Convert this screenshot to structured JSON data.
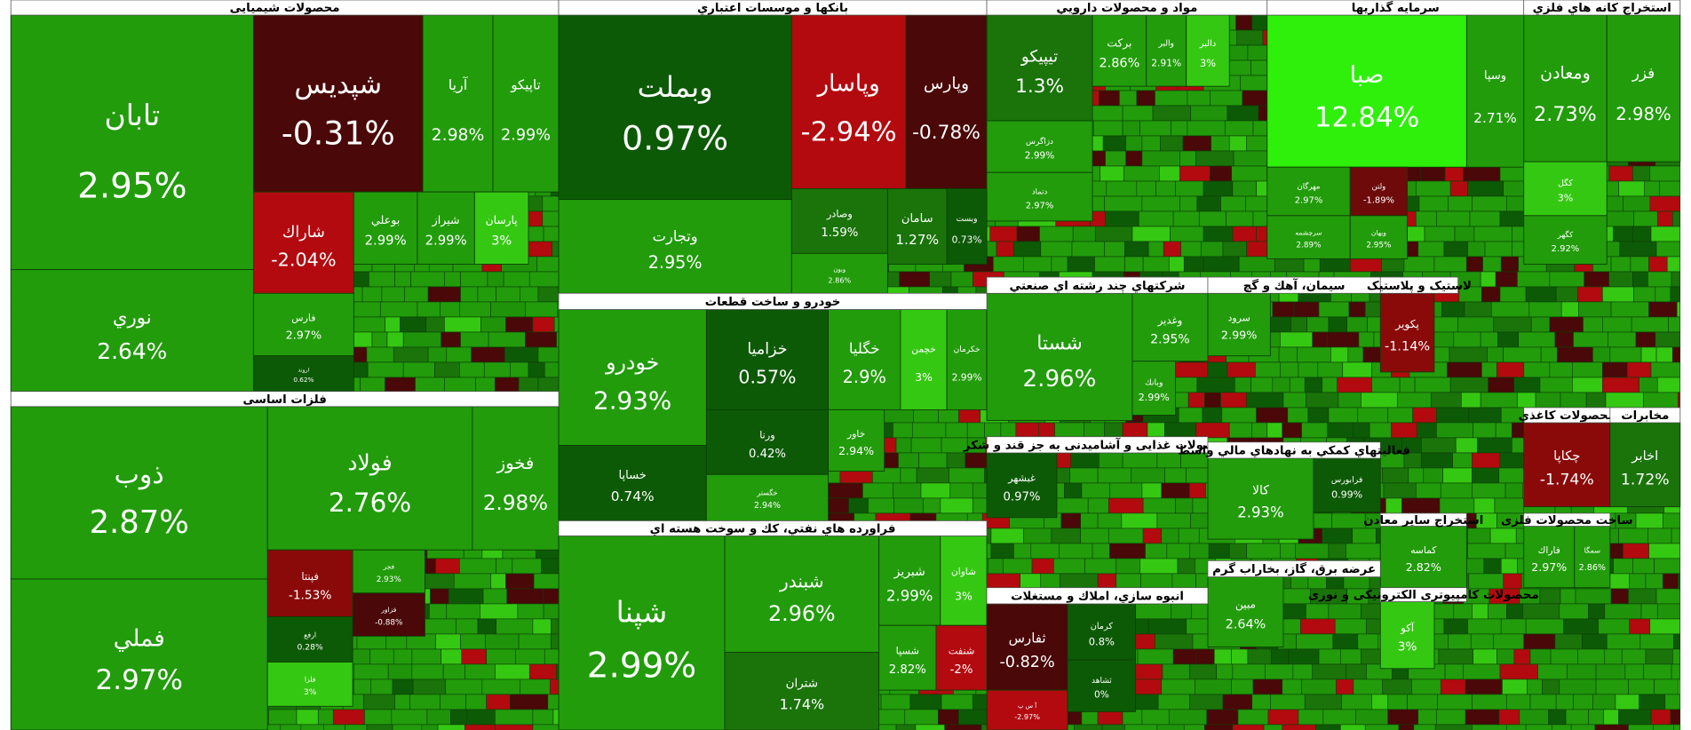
{
  "sectors": [
    {
      "title": "محصولات شیمیایی",
      "tiles": [
        {
          "name": "تابان",
          "change": "2.95%",
          "color": "#229c0b"
        },
        {
          "name": "نوري",
          "change": "2.64%",
          "color": "#229c0b"
        },
        {
          "name": "شپدیس",
          "change": "-0.31%",
          "color": "#4a0808"
        },
        {
          "name": "آریا",
          "change": "2.98%",
          "color": "#229c0b"
        },
        {
          "name": "تاپیکو",
          "change": "2.99%",
          "color": "#229c0b"
        },
        {
          "name": "شاراك",
          "change": "-2.04%",
          "color": "#b30a0f"
        },
        {
          "name": "بوعلي",
          "change": "2.99%",
          "color": "#229c0b"
        },
        {
          "name": "شیراز",
          "change": "2.99%",
          "color": "#229c0b"
        },
        {
          "name": "پارسان",
          "change": "3%",
          "color": "#35c812"
        },
        {
          "name": "فارس",
          "change": "2.97%",
          "color": "#229c0b"
        },
        {
          "name": "اروند",
          "change": "0.62%",
          "color": "#0d5a06"
        }
      ]
    },
    {
      "title": "فلزات اساسی",
      "tiles": [
        {
          "name": "ذوب",
          "change": "2.87%",
          "color": "#229c0b"
        },
        {
          "name": "فملي",
          "change": "2.97%",
          "color": "#229c0b"
        },
        {
          "name": "فولاد",
          "change": "2.76%",
          "color": "#229c0b"
        },
        {
          "name": "فخوز",
          "change": "2.98%",
          "color": "#229c0b"
        },
        {
          "name": "فپنتا",
          "change": "-1.53%",
          "color": "#8a0a0a"
        },
        {
          "name": "ارفع",
          "change": "0.28%",
          "color": "#0d5a06"
        },
        {
          "name": "فلزا",
          "change": "3%",
          "color": "#35c812"
        },
        {
          "name": "فجر",
          "change": "2.93%",
          "color": "#229c0b"
        },
        {
          "name": "فزاور",
          "change": "-0.88%",
          "color": "#4a0808"
        }
      ]
    },
    {
      "title": "بانکها و موسسات اعتباري",
      "tiles": [
        {
          "name": "وبملت",
          "change": "0.97%",
          "color": "#0d5a06"
        },
        {
          "name": "وتجارت",
          "change": "2.95%",
          "color": "#229c0b"
        },
        {
          "name": "وپاسار",
          "change": "-2.94%",
          "color": "#b30a0f"
        },
        {
          "name": "وپارس",
          "change": "-0.78%",
          "color": "#4a0808"
        },
        {
          "name": "وصادر",
          "change": "1.59%",
          "color": "#1a740a"
        },
        {
          "name": "سامان",
          "change": "1.27%",
          "color": "#1a740a"
        },
        {
          "name": "وبست",
          "change": "0.73%",
          "color": "#0d5a06"
        },
        {
          "name": "وبون",
          "change": "2.86%",
          "color": "#229c0b"
        }
      ]
    },
    {
      "title": "خودرو و ساخت قطعات",
      "tiles": [
        {
          "name": "خودرو",
          "change": "2.93%",
          "color": "#229c0b"
        },
        {
          "name": "خساپا",
          "change": "0.74%",
          "color": "#0d5a06"
        },
        {
          "name": "خزامیا",
          "change": "0.57%",
          "color": "#0d5a06"
        },
        {
          "name": "ورنا",
          "change": "0.42%",
          "color": "#0d5a06"
        },
        {
          "name": "خگستر",
          "change": "2.94%",
          "color": "#229c0b"
        },
        {
          "name": "خگلیا",
          "change": "2.9%",
          "color": "#229c0b"
        },
        {
          "name": "خچمن",
          "change": "3%",
          "color": "#35c812"
        },
        {
          "name": "خکرمان",
          "change": "2.99%",
          "color": "#229c0b"
        },
        {
          "name": "خاور",
          "change": "2.94%",
          "color": "#229c0b"
        }
      ]
    },
    {
      "title": "فراورده هاي نفتي، كك و سوخت هسته اي",
      "tiles": [
        {
          "name": "شپنا",
          "change": "2.99%",
          "color": "#229c0b"
        },
        {
          "name": "شبندر",
          "change": "2.96%",
          "color": "#229c0b"
        },
        {
          "name": "شتران",
          "change": "1.74%",
          "color": "#1a740a"
        },
        {
          "name": "شبریز",
          "change": "2.99%",
          "color": "#229c0b"
        },
        {
          "name": "شاوان",
          "change": "3%",
          "color": "#35c812"
        },
        {
          "name": "شسپا",
          "change": "2.82%",
          "color": "#229c0b"
        },
        {
          "name": "شنفت",
          "change": "-2%",
          "color": "#b30a0f"
        }
      ]
    },
    {
      "title": "مواد و محصولات دارویي",
      "tiles": [
        {
          "name": "تیپیکو",
          "change": "1.3%",
          "color": "#1a740a"
        },
        {
          "name": "دزاگرس",
          "change": "2.99%",
          "color": "#229c0b"
        },
        {
          "name": "دتماد",
          "change": "2.97%",
          "color": "#229c0b"
        },
        {
          "name": "برکت",
          "change": "2.86%",
          "color": "#229c0b"
        },
        {
          "name": "والبر",
          "change": "2.91%",
          "color": "#229c0b"
        },
        {
          "name": "دالبر",
          "change": "3%",
          "color": "#35c812"
        }
      ]
    },
    {
      "title": "سرمایه گذاریها",
      "tiles": [
        {
          "name": "صبا",
          "change": "12.84%",
          "color": "#2ef00a"
        },
        {
          "name": "وسپا",
          "change": "2.71%",
          "color": "#229c0b"
        },
        {
          "name": "مهرگان",
          "change": "2.97%",
          "color": "#229c0b"
        },
        {
          "name": "ولتن",
          "change": "-1.89%",
          "color": "#6e0a0a"
        },
        {
          "name": "سرچشمه",
          "change": "2.89%",
          "color": "#229c0b"
        },
        {
          "name": "وبهان",
          "change": "2.95%",
          "color": "#229c0b"
        }
      ]
    },
    {
      "title": "استخراج کانه هاي فلزي",
      "tiles": [
        {
          "name": "ومعادن",
          "change": "2.73%",
          "color": "#229c0b"
        },
        {
          "name": "فزر",
          "change": "2.98%",
          "color": "#229c0b"
        },
        {
          "name": "کگل",
          "change": "3%",
          "color": "#35c812"
        },
        {
          "name": "کگهر",
          "change": "2.92%",
          "color": "#229c0b"
        }
      ]
    },
    {
      "title": "شرکتهاي چند رشته اي صنعتي",
      "tiles": [
        {
          "name": "شستا",
          "change": "2.96%",
          "color": "#229c0b"
        },
        {
          "name": "وغدیر",
          "change": "2.95%",
          "color": "#229c0b"
        },
        {
          "name": "وبانك",
          "change": "2.99%",
          "color": "#229c0b"
        }
      ]
    },
    {
      "title": "سیمان، آهك و گچ",
      "tiles": [
        {
          "name": "سرود",
          "change": "2.99%",
          "color": "#229c0b"
        }
      ]
    },
    {
      "title": "محصولات غذایی و آشامیدنی به جز قند و شکر",
      "tiles": [
        {
          "name": "غبشهر",
          "change": "0.97%",
          "color": "#0d5a06"
        }
      ]
    },
    {
      "title": "فعالیتهاي کمکي به نهادهاي مالي واسط",
      "tiles": [
        {
          "name": "کالا",
          "change": "2.93%",
          "color": "#229c0b"
        },
        {
          "name": "فرابورس",
          "change": "0.99%",
          "color": "#0d5a06"
        }
      ]
    },
    {
      "title": "انبوه سازي، املاك و مستغلات",
      "tiles": [
        {
          "name": "ثفارس",
          "change": "-0.82%",
          "color": "#4a0808"
        },
        {
          "name": "آ س پ",
          "change": "-2.97%",
          "color": "#b30a0f"
        },
        {
          "name": "کرمان",
          "change": "0.8%",
          "color": "#0d5a06"
        },
        {
          "name": "ثشاهد",
          "change": "0%",
          "color": "#0d5a06"
        }
      ]
    },
    {
      "title": "عرضه برق، گاز، بخاراب گرم",
      "tiles": [
        {
          "name": "مبین",
          "change": "2.64%",
          "color": "#229c0b"
        }
      ]
    },
    {
      "title": "محصولات کاغذي",
      "tiles": [
        {
          "name": "چکاپا",
          "change": "-1.74%",
          "color": "#8a0a0a"
        }
      ]
    },
    {
      "title": "مخابرات",
      "tiles": [
        {
          "name": "اخابر",
          "change": "1.72%",
          "color": "#1a740a"
        }
      ]
    },
    {
      "title": "استخراج سایر معادن",
      "tiles": [
        {
          "name": "کماسه",
          "change": "2.82%",
          "color": "#229c0b"
        }
      ]
    },
    {
      "title": "لاستیک و پلاستیک",
      "tiles": [
        {
          "name": "پکویر",
          "change": "-1.14%",
          "color": "#8a0a0a"
        }
      ]
    },
    {
      "title": "محصولات کامپیوتری الکترونیکی و نوری",
      "tiles": [
        {
          "name": "آکو",
          "change": "3%",
          "color": "#35c812"
        }
      ]
    },
    {
      "title": "ساخت محصولات فلزی",
      "tiles": [
        {
          "name": "فاراك",
          "change": "2.97%",
          "color": "#229c0b"
        },
        {
          "name": "سمگا",
          "change": "2.86%",
          "color": "#229c0b"
        }
      ]
    }
  ]
}
